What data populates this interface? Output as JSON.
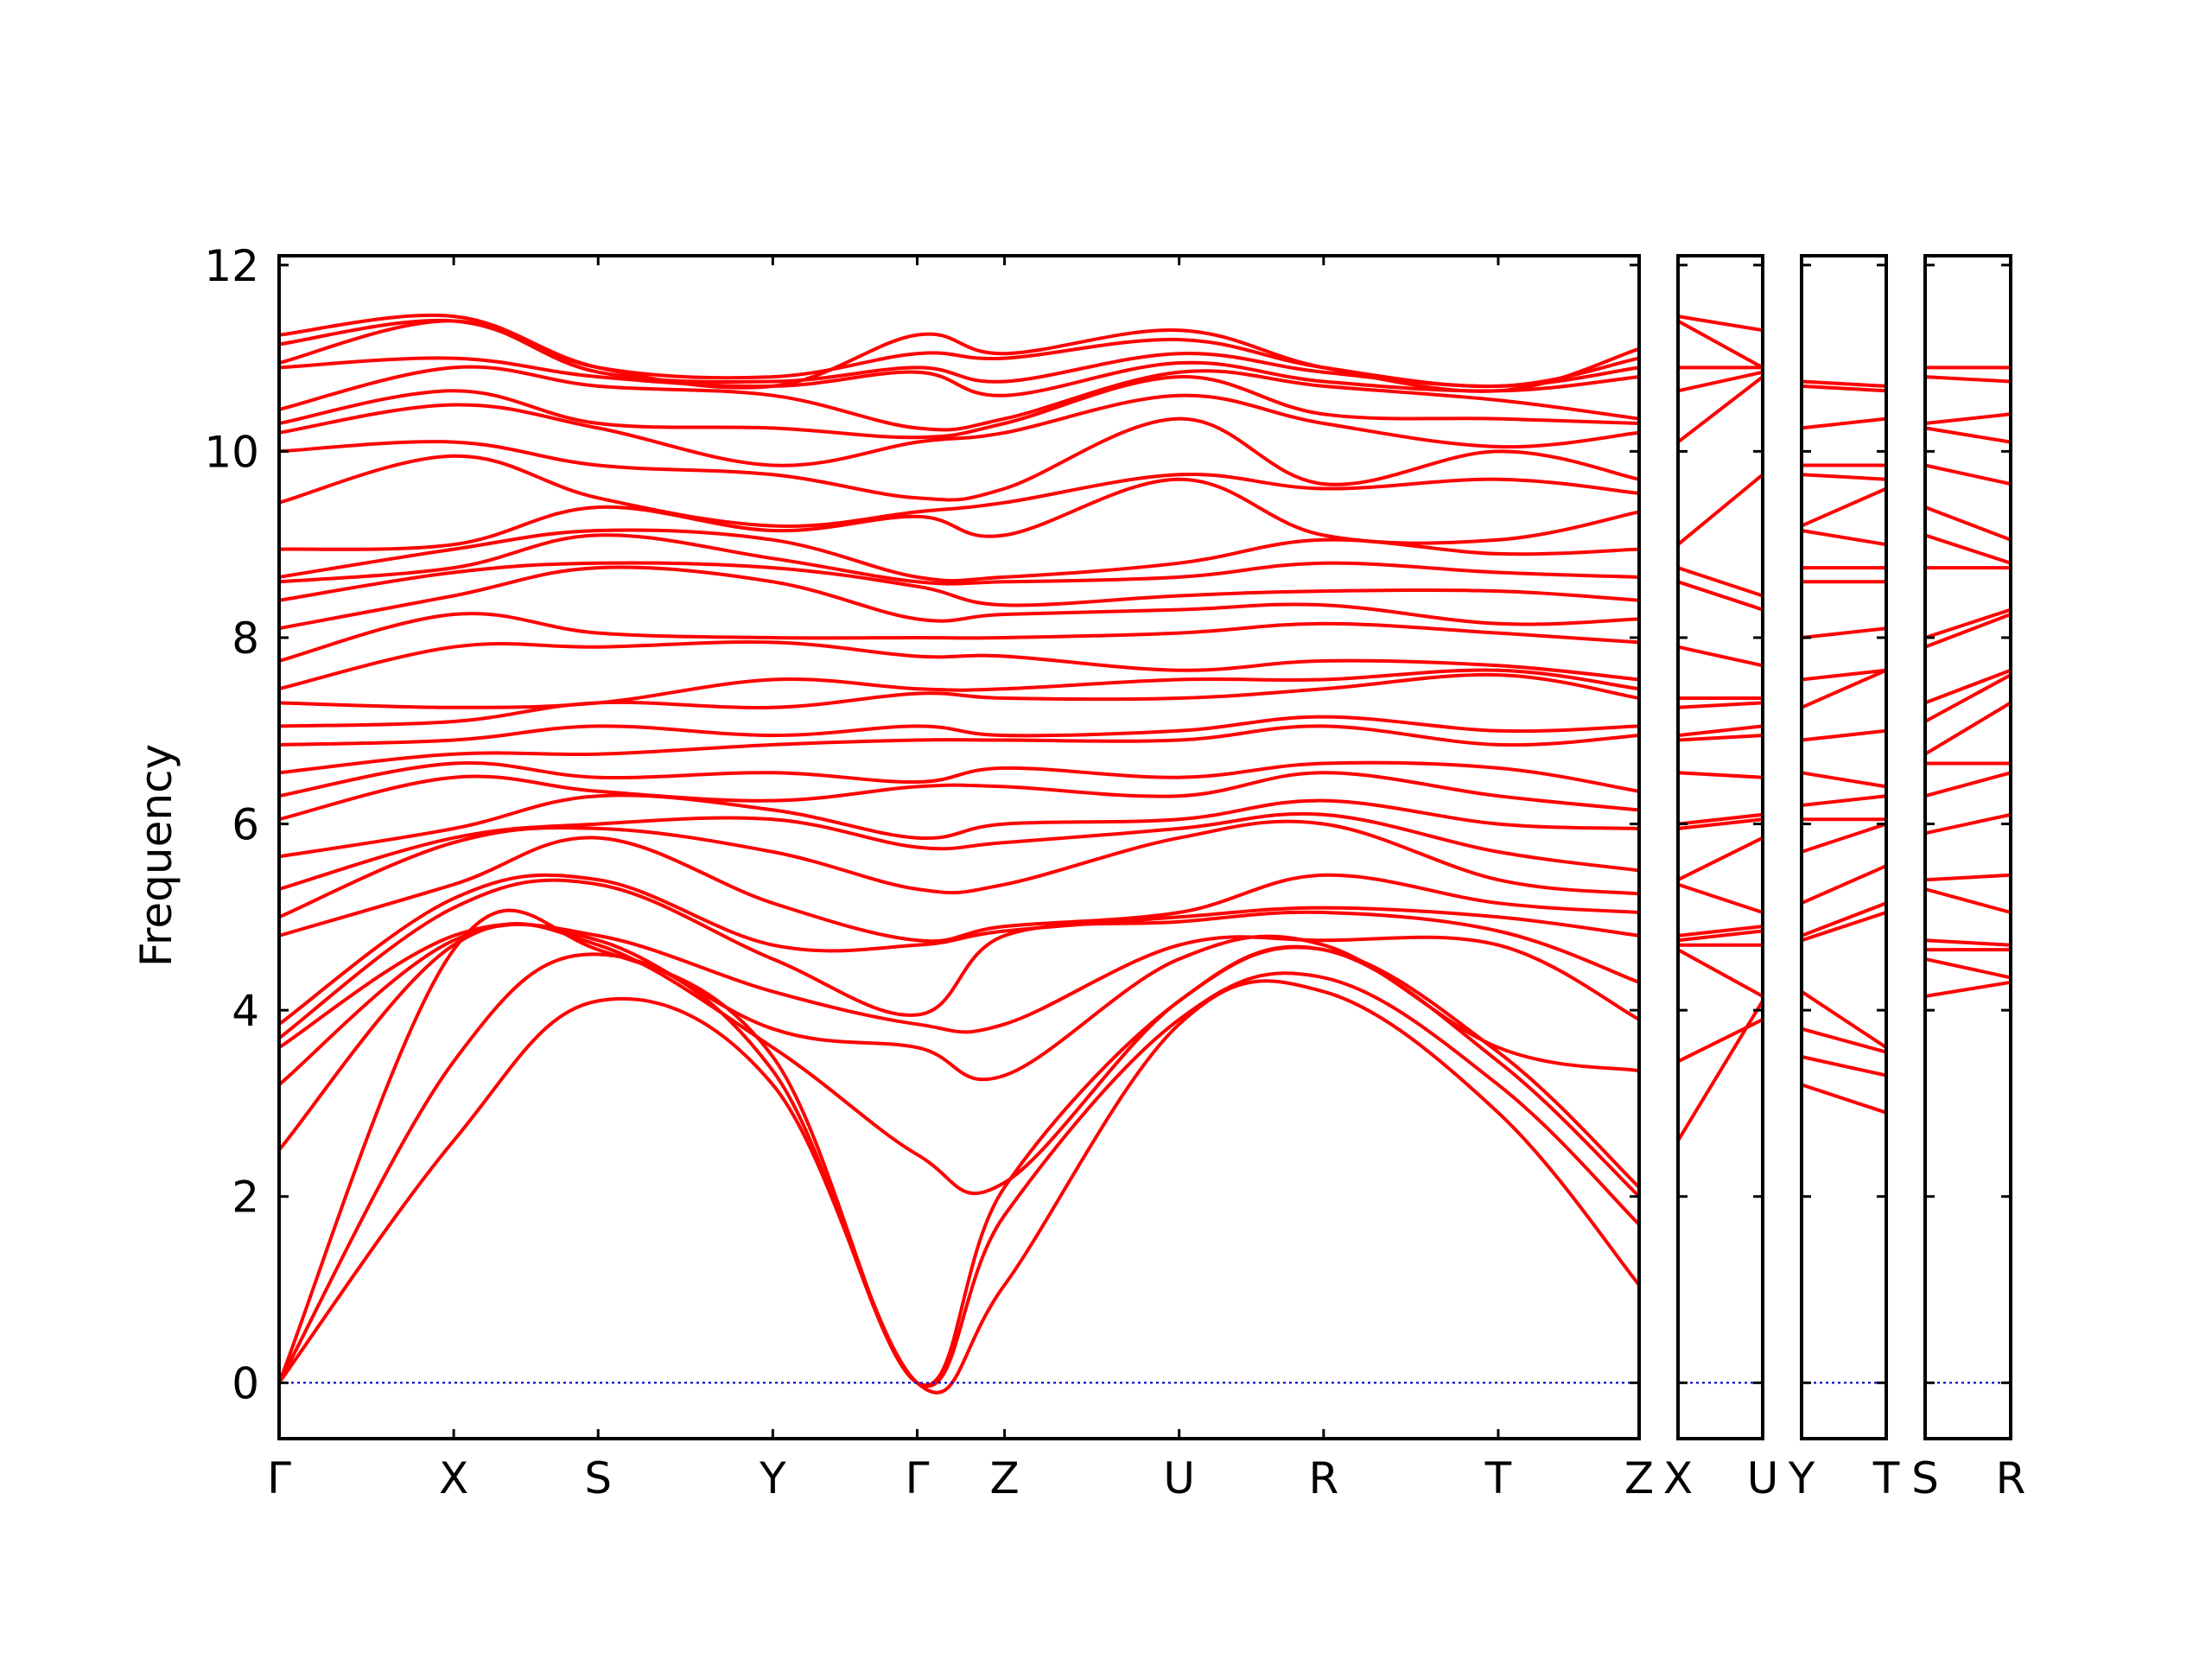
{
  "chart_data": {
    "type": "line",
    "title": "",
    "ylabel": "Frequency",
    "xlabel": "",
    "ylim": [
      -0.6,
      12.1
    ],
    "yticks": [
      0,
      2,
      4,
      6,
      8,
      10,
      12
    ],
    "grid": false,
    "legend": "none",
    "colors": {
      "bands": "#ff0000",
      "zero_line": "#0000cc",
      "frame": "#000000"
    },
    "panels": [
      {
        "labels": [
          "Γ",
          "X",
          "S",
          "Y",
          "Γ",
          "Z",
          "U",
          "R",
          "T",
          "Z"
        ],
        "x": [
          0,
          0.1284,
          0.2346,
          0.363,
          0.4692,
          0.5334,
          0.6618,
          0.768,
          0.8964,
          1.0
        ],
        "series": [
          {
            "values": [
              0,
              2.6,
              4.1,
              3.2,
              0,
              1.05,
              3.85,
              4.2,
              2.9,
              1.05
            ]
          },
          {
            "values": [
              0,
              3.45,
              4.6,
              3.35,
              0,
              1.8,
              3.9,
              4.35,
              3.2,
              1.7
            ]
          },
          {
            "values": [
              0,
              4.65,
              4.65,
              3.5,
              0,
              2.1,
              4.1,
              4.65,
              3.45,
              2.0
            ]
          },
          {
            "values": [
              2.5,
              4.7,
              4.7,
              3.6,
              2.45,
              2.15,
              4.1,
              4.65,
              3.55,
              2.1
            ]
          },
          {
            "values": [
              3.2,
              4.75,
              4.75,
              3.8,
              3.6,
              3.3,
              4.55,
              4.7,
              3.6,
              3.35
            ]
          },
          {
            "values": [
              3.6,
              4.8,
              4.8,
              4.2,
              3.85,
              3.85,
              4.7,
              4.75,
              4.7,
              3.9
            ]
          },
          {
            "values": [
              3.7,
              5.1,
              5.35,
              4.55,
              3.95,
              4.8,
              4.95,
              5.05,
              4.85,
              4.3
            ]
          },
          {
            "values": [
              3.85,
              5.2,
              5.4,
              4.7,
              4.7,
              4.85,
              5.0,
              5.1,
              5.0,
              4.8
            ]
          },
          {
            "values": [
              4.8,
              5.35,
              5.85,
              5.15,
              4.75,
              4.9,
              5.05,
              5.45,
              5.15,
              5.05
            ]
          },
          {
            "values": [
              5.0,
              5.8,
              5.95,
              5.7,
              5.3,
              5.35,
              5.85,
              6.0,
              5.4,
              5.25
            ]
          },
          {
            "values": [
              5.3,
              5.85,
              6.0,
              6.05,
              5.75,
              5.8,
              5.95,
              6.1,
              5.7,
              5.5
            ]
          },
          {
            "values": [
              5.65,
              5.95,
              6.3,
              6.15,
              5.85,
              6.0,
              6.05,
              6.25,
              6.0,
              5.95
            ]
          },
          {
            "values": [
              6.05,
              6.5,
              6.35,
              6.25,
              6.4,
              6.4,
              6.3,
              6.55,
              6.3,
              6.15
            ]
          },
          {
            "values": [
              6.3,
              6.65,
              6.5,
              6.55,
              6.45,
              6.6,
              6.5,
              6.65,
              6.6,
              6.35
            ]
          },
          {
            "values": [
              6.55,
              6.75,
              6.75,
              6.85,
              6.9,
              6.9,
              6.9,
              7.05,
              6.85,
              6.95
            ]
          },
          {
            "values": [
              6.85,
              6.9,
              7.05,
              6.95,
              7.05,
              6.95,
              7.0,
              7.15,
              7.0,
              7.05
            ]
          },
          {
            "values": [
              7.05,
              7.1,
              7.3,
              7.25,
              7.4,
              7.35,
              7.35,
              7.45,
              7.6,
              7.35
            ]
          },
          {
            "values": [
              7.3,
              7.25,
              7.3,
              7.55,
              7.45,
              7.45,
              7.55,
              7.55,
              7.65,
              7.45
            ]
          },
          {
            "values": [
              7.45,
              7.9,
              7.9,
              7.95,
              7.8,
              7.8,
              7.65,
              7.75,
              7.7,
              7.55
            ]
          },
          {
            "values": [
              7.75,
              8.25,
              8.05,
              8.0,
              8.0,
              8.0,
              8.05,
              8.15,
              8.05,
              7.95
            ]
          },
          {
            "values": [
              8.1,
              8.45,
              8.75,
              8.6,
              8.2,
              8.25,
              8.3,
              8.35,
              8.15,
              8.2
            ]
          },
          {
            "values": [
              8.4,
              8.7,
              8.8,
              8.75,
              8.55,
              8.35,
              8.45,
              8.5,
              8.5,
              8.4
            ]
          },
          {
            "values": [
              8.6,
              8.75,
              9.1,
              8.85,
              8.6,
              8.6,
              8.65,
              8.8,
              8.7,
              8.65
            ]
          },
          {
            "values": [
              8.65,
              8.95,
              9.15,
              9.05,
              8.65,
              8.65,
              8.8,
              9.05,
              8.9,
              8.95
            ]
          },
          {
            "values": [
              8.95,
              9.0,
              9.4,
              9.15,
              9.3,
              9.1,
              9.7,
              9.1,
              9.05,
              9.35
            ]
          },
          {
            "values": [
              9.45,
              9.95,
              9.5,
              9.2,
              9.35,
              9.45,
              9.75,
              9.6,
              9.7,
              9.55
            ]
          },
          {
            "values": [
              10.0,
              10.1,
              9.85,
              9.75,
              9.5,
              9.6,
              10.35,
              9.65,
              10.0,
              9.7
            ]
          },
          {
            "values": [
              10.2,
              10.5,
              10.25,
              9.85,
              10.1,
              10.2,
              10.6,
              10.3,
              10.05,
              10.2
            ]
          },
          {
            "values": [
              10.3,
              10.65,
              10.3,
              10.25,
              10.15,
              10.3,
              10.8,
              10.4,
              10.35,
              10.3
            ]
          },
          {
            "values": [
              10.45,
              10.9,
              10.7,
              10.6,
              10.25,
              10.35,
              10.85,
              10.7,
              10.55,
              10.35
            ]
          },
          {
            "values": [
              10.9,
              11.0,
              10.8,
              10.7,
              10.85,
              10.6,
              10.95,
              10.75,
              10.65,
              10.8
            ]
          },
          {
            "values": [
              10.95,
              11.4,
              10.85,
              10.75,
              10.9,
              10.75,
              11.05,
              10.85,
              10.7,
              10.9
            ]
          },
          {
            "values": [
              11.15,
              11.4,
              10.9,
              10.8,
              11.05,
              11.0,
              11.2,
              10.9,
              10.7,
              11.0
            ]
          },
          {
            "values": [
              11.25,
              11.45,
              10.9,
              10.7,
              11.25,
              11.05,
              11.3,
              10.9,
              10.65,
              11.1
            ]
          }
        ]
      },
      {
        "labels": [
          "X",
          "U"
        ],
        "x": [
          0,
          1
        ],
        "series": [
          {
            "values": [
              2.6,
              4.1
            ]
          },
          {
            "values": [
              3.45,
              3.9
            ]
          },
          {
            "values": [
              4.65,
              4.15
            ]
          },
          {
            "values": [
              4.7,
              4.7
            ]
          },
          {
            "values": [
              4.75,
              4.85
            ]
          },
          {
            "values": [
              4.8,
              4.9
            ]
          },
          {
            "values": [
              5.35,
              5.05
            ]
          },
          {
            "values": [
              5.4,
              5.85
            ]
          },
          {
            "values": [
              5.95,
              6.05
            ]
          },
          {
            "values": [
              6.0,
              6.1
            ]
          },
          {
            "values": [
              6.55,
              6.5
            ]
          },
          {
            "values": [
              6.9,
              6.95
            ]
          },
          {
            "values": [
              6.95,
              7.05
            ]
          },
          {
            "values": [
              7.25,
              7.3
            ]
          },
          {
            "values": [
              7.35,
              7.35
            ]
          },
          {
            "values": [
              7.9,
              7.7
            ]
          },
          {
            "values": [
              8.6,
              8.3
            ]
          },
          {
            "values": [
              8.75,
              8.45
            ]
          },
          {
            "values": [
              9.0,
              9.75
            ]
          },
          {
            "values": [
              10.1,
              10.8
            ]
          },
          {
            "values": [
              10.65,
              10.85
            ]
          },
          {
            "values": [
              10.9,
              10.9
            ]
          },
          {
            "values": [
              11.4,
              10.9
            ]
          },
          {
            "values": [
              11.45,
              11.3
            ]
          }
        ]
      },
      {
        "labels": [
          "Y",
          "T"
        ],
        "x": [
          0,
          1
        ],
        "series": [
          {
            "values": [
              3.2,
              2.9
            ]
          },
          {
            "values": [
              3.5,
              3.3
            ]
          },
          {
            "values": [
              3.8,
              3.55
            ]
          },
          {
            "values": [
              4.2,
              3.6
            ]
          },
          {
            "values": [
              4.75,
              5.05
            ]
          },
          {
            "values": [
              4.8,
              5.15
            ]
          },
          {
            "values": [
              5.15,
              5.55
            ]
          },
          {
            "values": [
              5.7,
              6.0
            ]
          },
          {
            "values": [
              6.05,
              6.05
            ]
          },
          {
            "values": [
              6.2,
              6.3
            ]
          },
          {
            "values": [
              6.55,
              6.4
            ]
          },
          {
            "values": [
              6.9,
              7.0
            ]
          },
          {
            "values": [
              7.25,
              7.65
            ]
          },
          {
            "values": [
              7.55,
              7.65
            ]
          },
          {
            "values": [
              8.0,
              8.1
            ]
          },
          {
            "values": [
              8.6,
              8.6
            ]
          },
          {
            "values": [
              8.75,
              8.75
            ]
          },
          {
            "values": [
              9.15,
              9.0
            ]
          },
          {
            "values": [
              9.2,
              9.6
            ]
          },
          {
            "values": [
              9.75,
              9.7
            ]
          },
          {
            "values": [
              9.85,
              9.85
            ]
          },
          {
            "values": [
              10.25,
              10.35
            ]
          },
          {
            "values": [
              10.7,
              10.65
            ]
          },
          {
            "values": [
              10.75,
              10.7
            ]
          }
        ]
      },
      {
        "labels": [
          "S",
          "R"
        ],
        "x": [
          0,
          1
        ],
        "series": [
          {
            "values": [
              4.15,
              4.3
            ]
          },
          {
            "values": [
              4.55,
              4.35
            ]
          },
          {
            "values": [
              4.65,
              4.65
            ]
          },
          {
            "values": [
              4.75,
              4.7
            ]
          },
          {
            "values": [
              5.3,
              5.05
            ]
          },
          {
            "values": [
              5.4,
              5.45
            ]
          },
          {
            "values": [
              5.9,
              6.1
            ]
          },
          {
            "values": [
              6.3,
              6.55
            ]
          },
          {
            "values": [
              6.65,
              6.65
            ]
          },
          {
            "values": [
              6.75,
              7.3
            ]
          },
          {
            "values": [
              7.1,
              7.6
            ]
          },
          {
            "values": [
              7.3,
              7.65
            ]
          },
          {
            "values": [
              7.9,
              8.25
            ]
          },
          {
            "values": [
              8.0,
              8.3
            ]
          },
          {
            "values": [
              8.75,
              8.75
            ]
          },
          {
            "values": [
              9.1,
              8.8
            ]
          },
          {
            "values": [
              9.4,
              9.05
            ]
          },
          {
            "values": [
              9.85,
              9.65
            ]
          },
          {
            "values": [
              10.25,
              10.1
            ]
          },
          {
            "values": [
              10.3,
              10.4
            ]
          },
          {
            "values": [
              10.8,
              10.75
            ]
          },
          {
            "values": [
              10.9,
              10.9
            ]
          }
        ]
      }
    ]
  }
}
